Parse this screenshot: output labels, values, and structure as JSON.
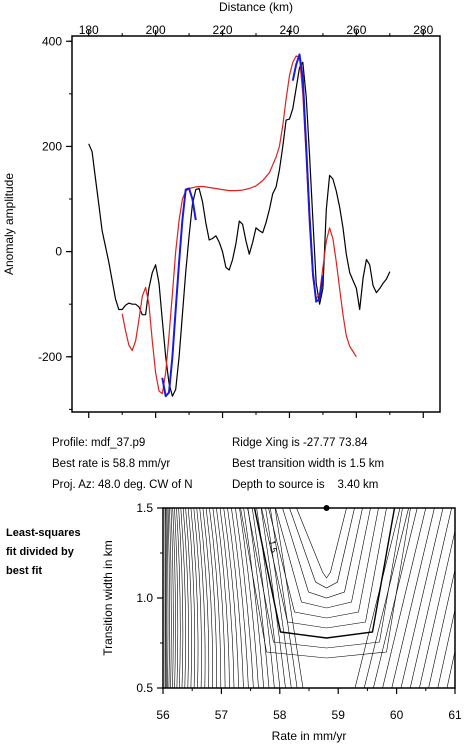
{
  "chart_data": [
    {
      "type": "line",
      "xlabel": "Distance (km)",
      "ylabel": "Anomaly amplitude",
      "xlim": [
        175,
        285
      ],
      "ylim": [
        -305,
        410
      ],
      "x_ticks": [
        "180",
        "200",
        "220",
        "240",
        "260",
        "280"
      ],
      "y_ticks": [
        "400",
        "200",
        "0",
        "-200"
      ],
      "series": [
        {
          "color": "#000000",
          "values": [
            [
              180,
              205
            ],
            [
              181,
              190
            ],
            [
              182,
              140
            ],
            [
              183,
              90
            ],
            [
              184,
              40
            ],
            [
              186,
              -20
            ],
            [
              188,
              -90
            ],
            [
              189,
              -110
            ],
            [
              190,
              -110
            ],
            [
              191,
              -102
            ],
            [
              192,
              -98
            ],
            [
              193,
              -100
            ],
            [
              194,
              -100
            ],
            [
              195,
              -105
            ],
            [
              196,
              -120
            ],
            [
              197,
              -120
            ],
            [
              198,
              -70
            ],
            [
              199,
              -40
            ],
            [
              200,
              -25
            ],
            [
              201,
              -60
            ],
            [
              202,
              -130
            ],
            [
              203,
              -200
            ],
            [
              204,
              -250
            ],
            [
              205,
              -275
            ],
            [
              206,
              -262
            ],
            [
              207,
              -200
            ],
            [
              208,
              -120
            ],
            [
              209,
              -40
            ],
            [
              210,
              30
            ],
            [
              211,
              90
            ],
            [
              212,
              118
            ],
            [
              213,
              120
            ],
            [
              214,
              95
            ],
            [
              215,
              55
            ],
            [
              216,
              22
            ],
            [
              217,
              25
            ],
            [
              218,
              30
            ],
            [
              219,
              18
            ],
            [
              220,
              0
            ],
            [
              221,
              -30
            ],
            [
              222,
              -35
            ],
            [
              223,
              -15
            ],
            [
              224,
              15
            ],
            [
              225,
              58
            ],
            [
              226,
              52
            ],
            [
              227,
              20
            ],
            [
              228,
              -5
            ],
            [
              229,
              18
            ],
            [
              230,
              45
            ],
            [
              231,
              40
            ],
            [
              232,
              36
            ],
            [
              233,
              55
            ],
            [
              234,
              80
            ],
            [
              235,
              110
            ],
            [
              236,
              123
            ],
            [
              237,
              155
            ],
            [
              238,
              200
            ],
            [
              239,
              250
            ],
            [
              240,
              252
            ],
            [
              241,
              272
            ],
            [
              242,
              310
            ],
            [
              243,
              350
            ],
            [
              244,
              360
            ],
            [
              245,
              295
            ],
            [
              246,
              185
            ],
            [
              247,
              60
            ],
            [
              248,
              -60
            ],
            [
              249,
              -100
            ],
            [
              250,
              -70
            ],
            [
              251,
              80
            ],
            [
              252,
              145
            ],
            [
              253,
              138
            ],
            [
              254,
              115
            ],
            [
              255,
              85
            ],
            [
              256,
              45
            ],
            [
              257,
              -5
            ],
            [
              258,
              -40
            ],
            [
              259,
              -55
            ],
            [
              260,
              -70
            ],
            [
              261,
              -110
            ],
            [
              262,
              -50
            ],
            [
              263,
              -15
            ],
            [
              264,
              -25
            ],
            [
              265,
              -65
            ],
            [
              266,
              -78
            ],
            [
              267,
              -70
            ],
            [
              268,
              -60
            ],
            [
              269,
              -52
            ],
            [
              270,
              -38
            ]
          ]
        },
        {
          "color": "#e02020",
          "values": [
            [
              190,
              -118
            ],
            [
              191,
              -150
            ],
            [
              192,
              -178
            ],
            [
              193,
              -188
            ],
            [
              194,
              -170
            ],
            [
              195,
              -130
            ],
            [
              196,
              -85
            ],
            [
              197,
              -68
            ],
            [
              198,
              -100
            ],
            [
              199,
              -170
            ],
            [
              200,
              -230
            ],
            [
              201,
              -265
            ],
            [
              202,
              -270
            ],
            [
              203,
              -230
            ],
            [
              204,
              -160
            ],
            [
              205,
              -80
            ],
            [
              206,
              0
            ],
            [
              207,
              60
            ],
            [
              208,
              100
            ],
            [
              209,
              115
            ],
            [
              210,
              120
            ],
            [
              212,
              123
            ],
            [
              214,
              124
            ],
            [
              216,
              122
            ],
            [
              218,
              120
            ],
            [
              220,
              118
            ],
            [
              222,
              116
            ],
            [
              224,
              116
            ],
            [
              226,
              117
            ],
            [
              228,
              120
            ],
            [
              230,
              125
            ],
            [
              232,
              135
            ],
            [
              234,
              150
            ],
            [
              236,
              180
            ],
            [
              237,
              200
            ],
            [
              238,
              240
            ],
            [
              239,
              290
            ],
            [
              240,
              335
            ],
            [
              241,
              360
            ],
            [
              242,
              372
            ],
            [
              243,
              370
            ],
            [
              244,
              300
            ],
            [
              245,
              180
            ],
            [
              246,
              50
            ],
            [
              247,
              -50
            ],
            [
              248,
              -90
            ],
            [
              249,
              -80
            ],
            [
              250,
              -30
            ],
            [
              251,
              20
            ],
            [
              252,
              45
            ],
            [
              253,
              25
            ],
            [
              254,
              -20
            ],
            [
              255,
              -70
            ],
            [
              256,
              -120
            ],
            [
              257,
              -160
            ],
            [
              258,
              -180
            ],
            [
              259,
              -190
            ],
            [
              260,
              -200
            ]
          ]
        },
        {
          "color": "#1a1adf",
          "values": [
            [
              202,
              -240
            ],
            [
              203,
              -275
            ],
            [
              204,
              -268
            ],
            [
              205,
              -200
            ],
            [
              206,
              -110
            ],
            [
              207,
              -20
            ],
            [
              208,
              60
            ],
            [
              209,
              118
            ],
            [
              210,
              120
            ],
            [
              211,
              100
            ],
            [
              212,
              60
            ]
          ]
        },
        {
          "color": "#1a1adf",
          "values": [
            [
              241,
              325
            ],
            [
              242,
              355
            ],
            [
              243,
              375
            ],
            [
              244,
              330
            ],
            [
              245,
              200
            ],
            [
              246,
              70
            ],
            [
              247,
              -40
            ],
            [
              248,
              -95
            ],
            [
              249,
              -90
            ],
            [
              250,
              -45
            ]
          ]
        }
      ]
    },
    {
      "type": "contour",
      "xlabel": "Rate in mm/yr",
      "ylabel": "Transition width in km",
      "xlim": [
        56,
        61
      ],
      "ylim": [
        0.5,
        1.5
      ],
      "x_ticks": [
        "56",
        "57",
        "58",
        "59",
        "60",
        "61"
      ],
      "y_ticks": [
        "1.5",
        "1.0",
        "0.5"
      ],
      "contour_label": "1.5",
      "best_fit": {
        "rate": 58.8,
        "width": 1.5
      }
    }
  ],
  "info": {
    "profile": "Profile: mdf_37.p9",
    "best_rate": "Best rate is 58.8 mm/yr",
    "proj_az": "Proj. Az: 48.0 deg. CW of N",
    "ridge_xing": "Ridge Xing is -27.77 73.84",
    "best_transition": "Best transition width is 1.5 km",
    "depth": "Depth to source is    3.40 km"
  },
  "side_label": [
    "Least-squares",
    "fit divided by",
    "best fit"
  ]
}
